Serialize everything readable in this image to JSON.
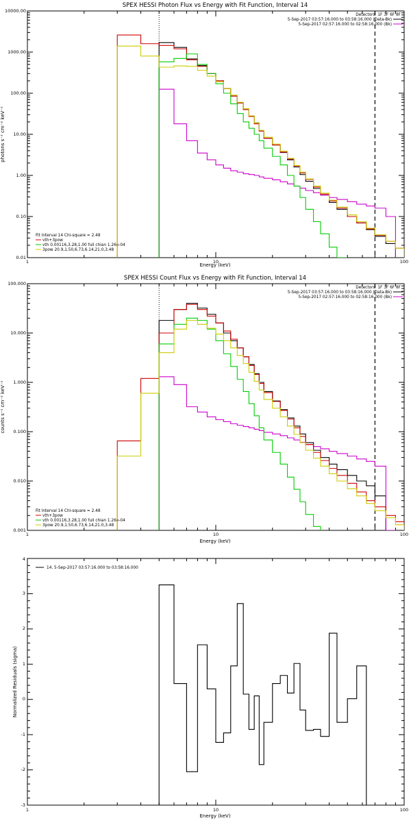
{
  "chart_data": [
    {
      "type": "line",
      "title": "SPEX HESSI Photon Flux vs Energy with Fit Function, Interval 14",
      "xlabel": "Energy (keV)",
      "ylabel": "photons s⁻¹ cm⁻² keV⁻¹",
      "xscale": "log",
      "yscale": "log",
      "xlim": [
        1,
        100
      ],
      "ylim": [
        0.01,
        10000
      ],
      "x_ticks": [
        "1",
        "10",
        "100"
      ],
      "y_ticks": [
        "0.01",
        "0.10",
        "1.00",
        "10.00",
        "100.00",
        "1000.00",
        "10000.00"
      ],
      "legend_header": [
        "Detectors: 1F 3F 6F 8F",
        "5-Sep-2017 03:57:16.000 to 03:58:16.000 (Data-Bk)",
        "5-Sep-2017 02:57:16.000 to 02:58:16.000 (Bk)"
      ],
      "legend_header_colors": [
        "#000000",
        "#000000",
        "#cc00cc"
      ],
      "fit_legend": [
        "Fit Interval 14   Chi-square = 2.48",
        "vth+3pow",
        "vth 0.00116,3.28,1.00  full chian 1.26e-04",
        "3pow 20.9,1.50,6.73,6.14,21.0,3.48"
      ],
      "fit_legend_colors": [
        "#000000",
        "#cc0000",
        "#00cc00",
        "#cccc00"
      ],
      "markers": {
        "dotted_x": 5.0,
        "dashed_x": 70.0
      },
      "edges": [
        3,
        4,
        5,
        6,
        7,
        8,
        9,
        10,
        11,
        12,
        13,
        14,
        15,
        16,
        17,
        18,
        20,
        22,
        24,
        26,
        28,
        30,
        33,
        36,
        40,
        44,
        50,
        56,
        63,
        70,
        80,
        90,
        100
      ],
      "series": [
        {
          "name": "",
          "color": "#000000",
          "start": 2,
          "values": [
            1700,
            1300,
            680,
            470,
            300,
            200,
            130,
            85,
            58,
            40,
            28,
            19,
            12,
            8,
            5.5,
            3.6,
            2.4,
            1.6,
            1.05,
            0.72,
            0.48,
            0.33,
            0.22,
            0.15,
            0.1,
            0.07,
            0.048,
            0.033,
            0.022
          ]
        },
        {
          "name": "",
          "color": "#cc00cc",
          "start": 2,
          "values": [
            125,
            18,
            7,
            3.5,
            2.4,
            1.8,
            1.5,
            1.3,
            1.2,
            1.1,
            1.05,
            1.0,
            0.92,
            0.85,
            0.78,
            0.7,
            0.62,
            0.55,
            0.49,
            0.43,
            0.38,
            0.33,
            0.29,
            0.26,
            0.23,
            0.2,
            0.18,
            0.16,
            0.1
          ]
        },
        {
          "name": "vth+3pow",
          "color": "#cc0000",
          "start": 0,
          "values": [
            2600,
            1600,
            1450,
            1200,
            650,
            450,
            300,
            200,
            130,
            85,
            58,
            40,
            27,
            18,
            12,
            8,
            5.5,
            3.7,
            2.5,
            1.7,
            1.15,
            0.8,
            0.52,
            0.35,
            0.24,
            0.16,
            0.1,
            0.07,
            0.05,
            0.035,
            0.025,
            0.017
          ]
        },
        {
          "name": "vth 0.00116,3.28,1.00  full chian 1.26e-04",
          "color": "#00cc00",
          "start": 2,
          "values": [
            580,
            700,
            900,
            500,
            300,
            170,
            100,
            55,
            32,
            20,
            14,
            10,
            7,
            4.6,
            2.9,
            1.8,
            1.0,
            0.55,
            0.29,
            0.15,
            0.075,
            0.038,
            0.018,
            0.009
          ]
        },
        {
          "name": "3pow 20.9,1.50,6.73,6.14,21.0,3.48",
          "color": "#cccc00",
          "start": 0,
          "values": [
            1400,
            800,
            430,
            460,
            450,
            360,
            260,
            190,
            130,
            90,
            60,
            42,
            28,
            19,
            12.5,
            8.5,
            5.8,
            3.9,
            2.6,
            1.75,
            1.2,
            0.82,
            0.55,
            0.37,
            0.25,
            0.17,
            0.11,
            0.075,
            0.052,
            0.036,
            0.025,
            0.017
          ]
        }
      ]
    },
    {
      "type": "line",
      "title": "SPEX HESSI Count Flux vs Energy with Fit Function, Interval 14",
      "xlabel": "Energy (keV)",
      "ylabel": "counts s⁻¹ cm⁻² keV⁻¹",
      "xscale": "log",
      "yscale": "log",
      "xlim": [
        1,
        100
      ],
      "ylim": [
        0.001,
        100
      ],
      "x_ticks": [
        "1",
        "10",
        "100"
      ],
      "y_ticks": [
        "0.001",
        "0.010",
        "0.100",
        "1.000",
        "10.000",
        "100.000"
      ],
      "legend_header": [
        "Detectors: 1F 3F 6F 8F",
        "5-Sep-2017 03:57:16.000 to 03:58:16.000 (Data-Bk)",
        "5-Sep-2017 02:57:16.000 to 02:58:16.000 (Bk)"
      ],
      "legend_header_colors": [
        "#000000",
        "#000000",
        "#cc00cc"
      ],
      "fit_legend": [
        "Fit Interval 14   Chi-square = 2.48",
        "vth+3pow",
        "vth 0.00116,3.28,1.00  full chian 1.26e-04",
        "3pow 20.9,1.50,6.73,6.14,21.0,3.48"
      ],
      "fit_legend_colors": [
        "#000000",
        "#cc0000",
        "#00cc00",
        "#cccc00"
      ],
      "markers": {
        "dotted_x": 5.0,
        "dashed_x": 70.0
      },
      "edges": [
        3,
        4,
        5,
        6,
        7,
        8,
        9,
        10,
        11,
        12,
        13,
        14,
        15,
        16,
        17,
        18,
        20,
        22,
        24,
        26,
        28,
        30,
        33,
        36,
        40,
        44,
        50,
        56,
        63,
        70,
        80,
        90,
        100
      ],
      "series": [
        {
          "name": "",
          "color": "#000000",
          "start": 2,
          "values": [
            18,
            30,
            40,
            32,
            24,
            16,
            10,
            7,
            5,
            3.3,
            2.3,
            1.5,
            1.0,
            0.65,
            0.42,
            0.28,
            0.19,
            0.13,
            0.09,
            0.06,
            0.042,
            0.03,
            0.022,
            0.017,
            0.013,
            0.01,
            0.008,
            0.005,
            0.001
          ]
        },
        {
          "name": "",
          "color": "#cc00cc",
          "start": 2,
          "values": [
            1.3,
            0.9,
            0.32,
            0.25,
            0.2,
            0.175,
            0.16,
            0.145,
            0.135,
            0.127,
            0.12,
            0.112,
            0.105,
            0.097,
            0.09,
            0.083,
            0.075,
            0.068,
            0.061,
            0.055,
            0.05,
            0.045,
            0.04,
            0.036,
            0.032,
            0.028,
            0.025,
            0.02,
            0.001
          ]
        },
        {
          "name": "vth+3pow",
          "color": "#cc0000",
          "start": 0,
          "values": [
            0.065,
            1.2,
            10,
            30,
            38,
            30,
            22,
            16,
            11,
            7.5,
            5,
            3.3,
            2.2,
            1.45,
            0.95,
            0.62,
            0.41,
            0.27,
            0.18,
            0.12,
            0.08,
            0.055,
            0.038,
            0.026,
            0.018,
            0.013,
            0.009,
            0.006,
            0.004,
            0.003,
            0.002,
            0.0015
          ]
        },
        {
          "name": "vth 0.00116,3.28,1.00  full chian 1.26e-04",
          "color": "#00cc00",
          "start": 2,
          "values": [
            6,
            15,
            20,
            18,
            12,
            7,
            3.8,
            2.1,
            1.15,
            0.65,
            0.37,
            0.21,
            0.12,
            0.068,
            0.038,
            0.022,
            0.012,
            0.0068,
            0.0038,
            0.0021,
            0.0012
          ]
        },
        {
          "name": "3pow 20.9,1.50,6.73,6.14,21.0,3.48",
          "color": "#cccc00",
          "start": 0,
          "values": [
            0.032,
            0.6,
            4,
            12,
            18,
            15,
            12.5,
            9.5,
            7,
            5,
            3.5,
            2.4,
            1.6,
            1.05,
            0.7,
            0.45,
            0.3,
            0.2,
            0.13,
            0.088,
            0.06,
            0.042,
            0.029,
            0.02,
            0.014,
            0.01,
            0.007,
            0.005,
            0.0035,
            0.0025,
            0.0018,
            0.0013
          ]
        }
      ]
    },
    {
      "type": "line",
      "title": "",
      "xlabel": "Energy (keV)",
      "ylabel": "Normalized Residuals (sigma)",
      "xscale": "log",
      "yscale": "linear",
      "xlim": [
        1,
        100
      ],
      "ylim": [
        -3,
        4
      ],
      "x_ticks": [
        "1",
        "10",
        "100"
      ],
      "y_ticks": [
        "-3",
        "-2",
        "-1",
        "0",
        "1",
        "2",
        "3",
        "4"
      ],
      "legend": [
        "14.  5-Sep-2017 03:57:16.000 to 03:58:16.000"
      ],
      "edges": [
        5,
        6,
        7,
        8,
        9,
        10,
        11,
        12,
        13,
        14,
        15,
        16,
        17,
        18,
        20,
        22,
        24,
        26,
        28,
        30,
        33,
        36,
        40,
        44,
        50,
        56,
        63,
        70
      ],
      "series": [
        {
          "name": "14.  5-Sep-2017 03:57:16.000 to 03:58:16.000",
          "color": "#000000",
          "start": 0,
          "values": [
            3.25,
            0.45,
            -2.05,
            1.55,
            0.3,
            -1.22,
            -0.95,
            0.95,
            2.72,
            0.15,
            -0.85,
            0.1,
            -1.85,
            -0.65,
            0.45,
            0.68,
            0.18,
            1.02,
            -0.3,
            -0.88,
            -0.85,
            -1.05,
            1.88,
            -0.65,
            0.02,
            0.95,
            -3
          ]
        }
      ]
    }
  ]
}
